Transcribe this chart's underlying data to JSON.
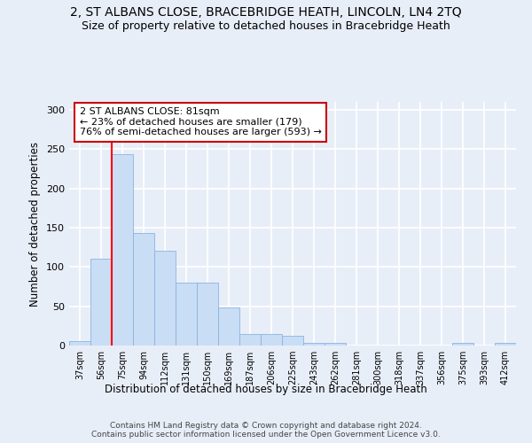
{
  "title1": "2, ST ALBANS CLOSE, BRACEBRIDGE HEATH, LINCOLN, LN4 2TQ",
  "title2": "Size of property relative to detached houses in Bracebridge Heath",
  "xlabel": "Distribution of detached houses by size in Bracebridge Heath",
  "ylabel": "Number of detached properties",
  "footer1": "Contains HM Land Registry data © Crown copyright and database right 2024.",
  "footer2": "Contains public sector information licensed under the Open Government Licence v3.0.",
  "bin_labels": [
    "37sqm",
    "56sqm",
    "75sqm",
    "94sqm",
    "112sqm",
    "131sqm",
    "150sqm",
    "169sqm",
    "187sqm",
    "206sqm",
    "225sqm",
    "243sqm",
    "262sqm",
    "281sqm",
    "300sqm",
    "318sqm",
    "337sqm",
    "356sqm",
    "375sqm",
    "393sqm",
    "412sqm"
  ],
  "bar_heights": [
    6,
    111,
    243,
    143,
    121,
    80,
    80,
    48,
    15,
    15,
    12,
    3,
    3,
    0,
    0,
    0,
    0,
    0,
    3,
    0,
    3
  ],
  "bar_color": "#c9ddf5",
  "bar_edge_color": "#8ab4e0",
  "red_line_x": 1.5,
  "annotation_text": "2 ST ALBANS CLOSE: 81sqm\n← 23% of detached houses are smaller (179)\n76% of semi-detached houses are larger (593) →",
  "annotation_box_color": "white",
  "annotation_box_edge": "#cc0000",
  "ylim": [
    0,
    310
  ],
  "yticks": [
    0,
    50,
    100,
    150,
    200,
    250,
    300
  ],
  "background_color": "#e8eef8",
  "grid_color": "#ffffff",
  "title1_fontsize": 10,
  "title2_fontsize": 9,
  "xlabel_fontsize": 8.5,
  "ylabel_fontsize": 8.5,
  "annotation_fontsize": 8,
  "footer_fontsize": 6.5
}
